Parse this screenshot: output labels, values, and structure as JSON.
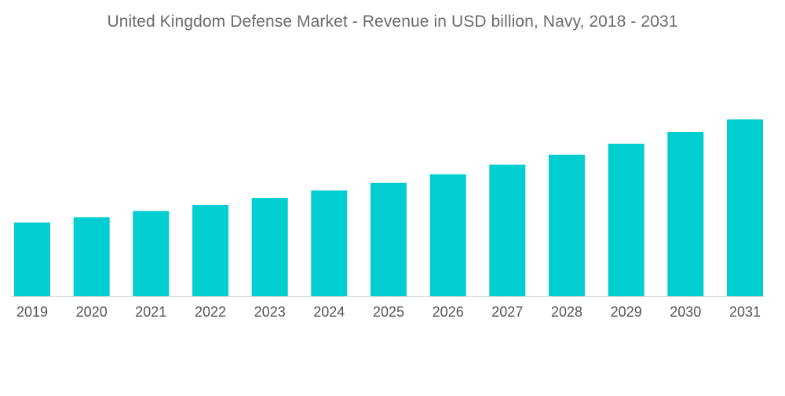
{
  "chart_data": {
    "type": "bar",
    "title": "United Kingdom Defense Market - Revenue in USD billion, Navy, 2018 - 2031",
    "xlabel": "",
    "ylabel": "",
    "categories": [
      "2019",
      "2020",
      "2021",
      "2022",
      "2023",
      "2024",
      "2025",
      "2026",
      "2027",
      "2028",
      "2029",
      "2030",
      "2031"
    ],
    "values": [
      3.4,
      3.65,
      3.93,
      4.21,
      4.53,
      4.88,
      5.23,
      5.63,
      6.07,
      6.53,
      7.04,
      7.58,
      8.16
    ],
    "ylim": [
      0,
      8.16
    ],
    "grid": false,
    "legend": "none",
    "colors": {
      "bar": "#00ced1",
      "axis": "#d9d9d9",
      "text": "#555555"
    }
  }
}
